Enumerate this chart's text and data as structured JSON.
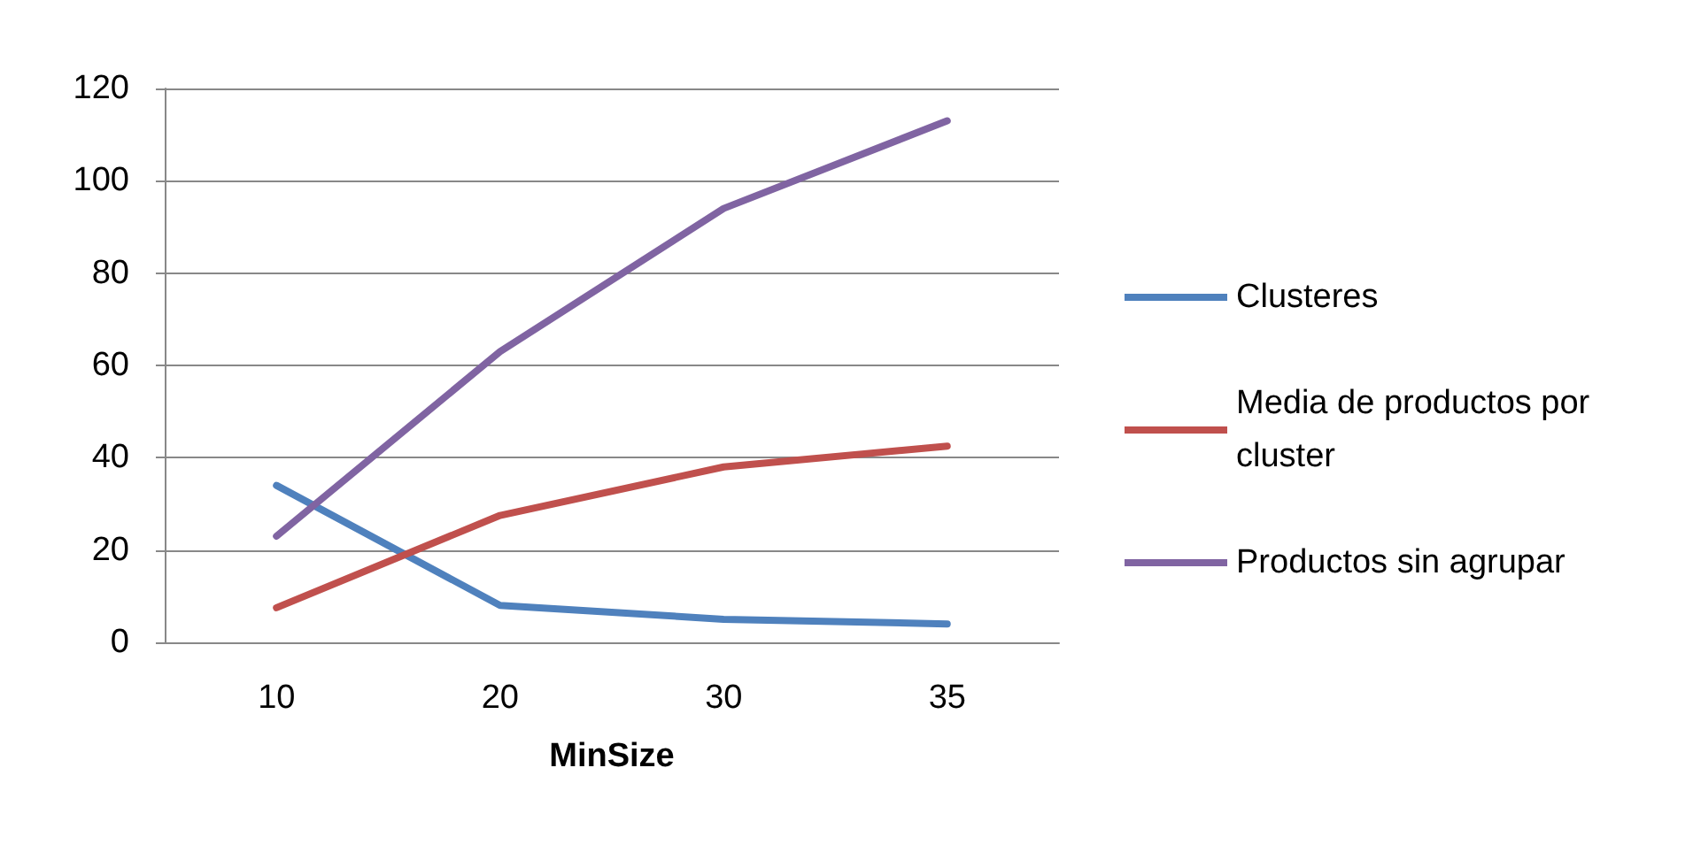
{
  "chart_data": {
    "type": "line",
    "xlabel": "MinSize",
    "categories": [
      "10",
      "20",
      "30",
      "35"
    ],
    "series": [
      {
        "name": "Clusteres",
        "color": "#4f81bd",
        "values": [
          34,
          8,
          5,
          4
        ]
      },
      {
        "name": "Media de productos por cluster",
        "color": "#c0504d",
        "values": [
          7.5,
          27.5,
          38,
          42.5
        ]
      },
      {
        "name": "Productos sin agrupar",
        "color": "#8064a2",
        "values": [
          23,
          63,
          94,
          113
        ]
      }
    ],
    "ylim": [
      0,
      120
    ],
    "yticks": [
      0,
      20,
      40,
      60,
      80,
      100,
      120
    ],
    "grid": "y",
    "legend": "right",
    "marker": "none",
    "line_style": "solid"
  }
}
